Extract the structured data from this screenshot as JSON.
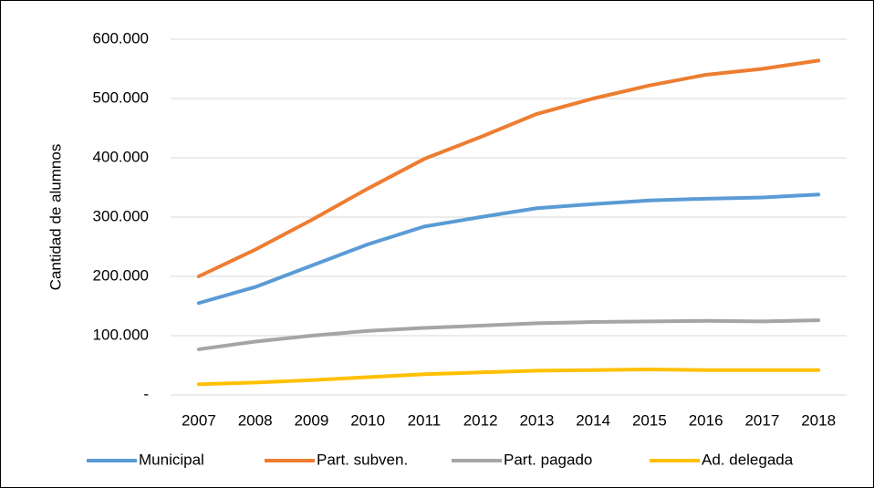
{
  "chart_data": {
    "type": "line",
    "y_label": "Cantidad de alumnos",
    "categories": [
      "2007",
      "2008",
      "2009",
      "2010",
      "2011",
      "2012",
      "2013",
      "2014",
      "2015",
      "2016",
      "2017",
      "2018"
    ],
    "series": [
      {
        "name": "Municipal",
        "color": "#5b9bd5",
        "values": [
          155000,
          182000,
          218000,
          254000,
          284000,
          300000,
          315000,
          322000,
          328000,
          331000,
          333000,
          338000
        ]
      },
      {
        "name": "Part. subven.",
        "color": "#ed7d31",
        "values": [
          200000,
          245000,
          295000,
          348000,
          398000,
          435000,
          474000,
          500000,
          522000,
          540000,
          550000,
          564000
        ]
      },
      {
        "name": "Part. pagado",
        "color": "#a5a5a5",
        "values": [
          77000,
          90000,
          100000,
          108000,
          113000,
          117000,
          121000,
          123000,
          124000,
          125000,
          124000,
          126000
        ]
      },
      {
        "name": "Ad. delegada",
        "color": "#ffc000",
        "values": [
          18000,
          21000,
          25000,
          30000,
          35000,
          38000,
          41000,
          42000,
          43000,
          42000,
          42000,
          42000
        ]
      }
    ],
    "ylim": [
      0,
      600000
    ],
    "yticks": [
      {
        "value": 0,
        "label": "-"
      },
      {
        "value": 100000,
        "label": "100.000"
      },
      {
        "value": 200000,
        "label": "200.000"
      },
      {
        "value": 300000,
        "label": "300.000"
      },
      {
        "value": 400000,
        "label": "400.000"
      },
      {
        "value": 500000,
        "label": "500.000"
      },
      {
        "value": 600000,
        "label": "600.000"
      }
    ],
    "grid": true,
    "legend": "bottom"
  }
}
